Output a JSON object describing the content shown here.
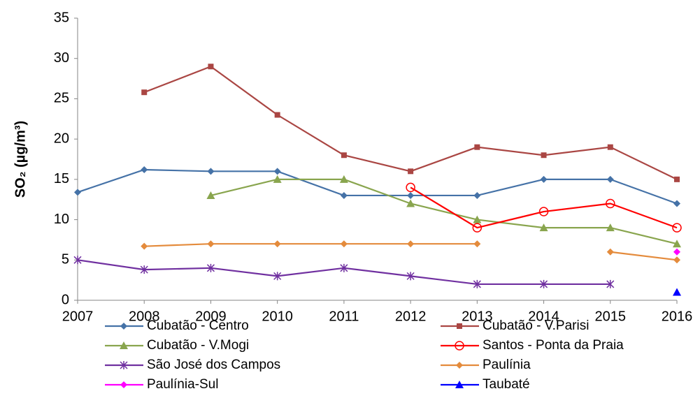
{
  "chart_data": {
    "type": "line",
    "y_label": "SO₂ (µg/m³)",
    "x": [
      2007,
      2008,
      2009,
      2010,
      2011,
      2012,
      2013,
      2014,
      2015,
      2016
    ],
    "xlim": [
      2007,
      2016
    ],
    "xticks": [
      2007,
      2008,
      2009,
      2010,
      2011,
      2012,
      2013,
      2014,
      2015,
      2016
    ],
    "ylim": [
      0,
      35
    ],
    "yticks": [
      0,
      5,
      10,
      15,
      20,
      25,
      30,
      35
    ],
    "grid": false,
    "legend": "bottom",
    "series": [
      {
        "name": "Cubatão - Centro",
        "color": "#4572a7",
        "marker": "diamond",
        "values": [
          13.4,
          16.2,
          16,
          16,
          13,
          13,
          13,
          15,
          15,
          12
        ]
      },
      {
        "name": "Cubatão - V.Parisi",
        "color": "#aa4643",
        "marker": "square",
        "values": [
          null,
          25.8,
          29,
          23,
          18,
          16,
          19,
          18,
          19,
          15
        ]
      },
      {
        "name": "Cubatão - V.Mogi",
        "color": "#89a54e",
        "marker": "triangle",
        "values": [
          null,
          null,
          13,
          15,
          15,
          12,
          10,
          9,
          9,
          7
        ]
      },
      {
        "name": "Santos - Ponta da Praia",
        "color": "#ff0000",
        "marker": "circle",
        "values": [
          null,
          null,
          null,
          null,
          null,
          14,
          9,
          11,
          12,
          9
        ]
      },
      {
        "name": "São José dos Campos",
        "color": "#7030a0",
        "marker": "star",
        "values": [
          5,
          3.8,
          4,
          3,
          4,
          3,
          2,
          2,
          2,
          null
        ]
      },
      {
        "name": "Paulínia",
        "color": "#e48b3c",
        "marker": "diamond",
        "values": [
          null,
          6.7,
          7,
          7,
          7,
          7,
          7,
          null,
          6,
          5
        ]
      },
      {
        "name": "Paulínia-Sul",
        "color": "#ff00ff",
        "marker": "diamond",
        "values": [
          null,
          null,
          null,
          null,
          null,
          null,
          null,
          null,
          null,
          6
        ]
      },
      {
        "name": "Taubaté",
        "color": "#0000ff",
        "marker": "triangle",
        "values": [
          null,
          null,
          null,
          null,
          null,
          null,
          null,
          null,
          null,
          1
        ]
      }
    ]
  }
}
